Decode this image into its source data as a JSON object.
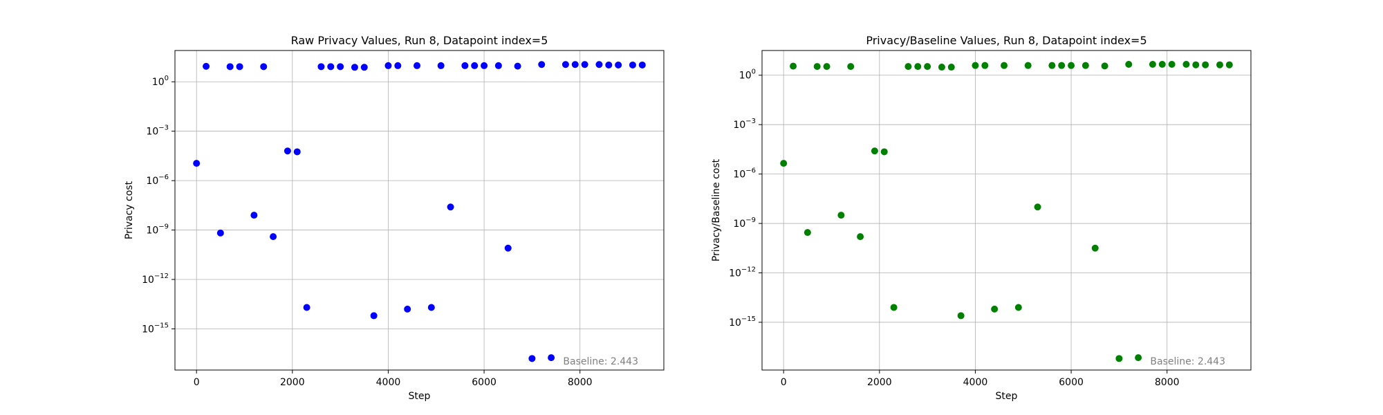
{
  "chart_data": [
    {
      "type": "scatter",
      "title": "Raw Privacy Values, Run 8, Datapoint index=5",
      "xlabel": "Step",
      "ylabel": "Privacy cost",
      "annotation": "Baseline: 2.443",
      "marker_color": "#0000ff",
      "y_scale": "log",
      "grid": true,
      "xlim": [
        -450,
        9750
      ],
      "ylim_log10": [
        -17.5,
        1.9
      ],
      "x_ticks": [
        0,
        2000,
        4000,
        6000,
        8000
      ],
      "x_tick_labels": [
        "0",
        "2000",
        "4000",
        "6000",
        "8000"
      ],
      "y_ticks_log10": [
        0,
        -3,
        -6,
        -9,
        -12,
        -15
      ],
      "y_tick_labels": [
        "10^0",
        "10^-3",
        "10^-6",
        "10^-9",
        "10^-12",
        "10^-15"
      ],
      "points": [
        {
          "x": 0,
          "y_log10": -4.95
        },
        {
          "x": 200,
          "y_log10": 0.94
        },
        {
          "x": 500,
          "y_log10": -9.18
        },
        {
          "x": 700,
          "y_log10": 0.92
        },
        {
          "x": 900,
          "y_log10": 0.92
        },
        {
          "x": 1200,
          "y_log10": -8.1
        },
        {
          "x": 1400,
          "y_log10": 0.92
        },
        {
          "x": 1600,
          "y_log10": -9.4
        },
        {
          "x": 1900,
          "y_log10": -4.2
        },
        {
          "x": 2100,
          "y_log10": -4.25
        },
        {
          "x": 2300,
          "y_log10": -13.7
        },
        {
          "x": 2600,
          "y_log10": 0.92
        },
        {
          "x": 2800,
          "y_log10": 0.92
        },
        {
          "x": 3000,
          "y_log10": 0.92
        },
        {
          "x": 3300,
          "y_log10": 0.88
        },
        {
          "x": 3500,
          "y_log10": 0.88
        },
        {
          "x": 3700,
          "y_log10": -14.2
        },
        {
          "x": 4000,
          "y_log10": 0.98
        },
        {
          "x": 4200,
          "y_log10": 0.98
        },
        {
          "x": 4400,
          "y_log10": -13.8
        },
        {
          "x": 4600,
          "y_log10": 0.98
        },
        {
          "x": 4900,
          "y_log10": -13.7
        },
        {
          "x": 5100,
          "y_log10": 0.98
        },
        {
          "x": 5300,
          "y_log10": -7.6
        },
        {
          "x": 5600,
          "y_log10": 0.98
        },
        {
          "x": 5800,
          "y_log10": 0.98
        },
        {
          "x": 6000,
          "y_log10": 0.98
        },
        {
          "x": 6300,
          "y_log10": 0.98
        },
        {
          "x": 6500,
          "y_log10": -10.1
        },
        {
          "x": 6700,
          "y_log10": 0.95
        },
        {
          "x": 7000,
          "y_log10": -16.8
        },
        {
          "x": 7200,
          "y_log10": 1.05
        },
        {
          "x": 7400,
          "y_log10": -16.75
        },
        {
          "x": 7700,
          "y_log10": 1.05
        },
        {
          "x": 7900,
          "y_log10": 1.05
        },
        {
          "x": 8100,
          "y_log10": 1.05
        },
        {
          "x": 8400,
          "y_log10": 1.05
        },
        {
          "x": 8600,
          "y_log10": 1.02
        },
        {
          "x": 8800,
          "y_log10": 1.02
        },
        {
          "x": 9100,
          "y_log10": 1.02
        },
        {
          "x": 9300,
          "y_log10": 1.02
        }
      ]
    },
    {
      "type": "scatter",
      "title": "Privacy/Baseline Values, Run 8, Datapoint index=5",
      "xlabel": "Step",
      "ylabel": "Privacy/Baseline cost",
      "annotation": "Baseline: 2.443",
      "marker_color": "#008000",
      "y_scale": "log",
      "grid": true,
      "xlim": [
        -450,
        9750
      ],
      "ylim_log10": [
        -17.9,
        1.5
      ],
      "x_ticks": [
        0,
        2000,
        4000,
        6000,
        8000
      ],
      "x_tick_labels": [
        "0",
        "2000",
        "4000",
        "6000",
        "8000"
      ],
      "y_ticks_log10": [
        0,
        -3,
        -6,
        -9,
        -12,
        -15
      ],
      "y_tick_labels": [
        "10^0",
        "10^-3",
        "10^-6",
        "10^-9",
        "10^-12",
        "10^-15"
      ],
      "points": [
        {
          "x": 0,
          "y_log10": -5.35
        },
        {
          "x": 200,
          "y_log10": 0.55
        },
        {
          "x": 500,
          "y_log10": -9.55
        },
        {
          "x": 700,
          "y_log10": 0.53
        },
        {
          "x": 900,
          "y_log10": 0.53
        },
        {
          "x": 1200,
          "y_log10": -8.5
        },
        {
          "x": 1400,
          "y_log10": 0.53
        },
        {
          "x": 1600,
          "y_log10": -9.8
        },
        {
          "x": 1900,
          "y_log10": -4.6
        },
        {
          "x": 2100,
          "y_log10": -4.65
        },
        {
          "x": 2300,
          "y_log10": -14.1
        },
        {
          "x": 2600,
          "y_log10": 0.53
        },
        {
          "x": 2800,
          "y_log10": 0.53
        },
        {
          "x": 3000,
          "y_log10": 0.53
        },
        {
          "x": 3300,
          "y_log10": 0.49
        },
        {
          "x": 3500,
          "y_log10": 0.49
        },
        {
          "x": 3700,
          "y_log10": -14.6
        },
        {
          "x": 4000,
          "y_log10": 0.59
        },
        {
          "x": 4200,
          "y_log10": 0.59
        },
        {
          "x": 4400,
          "y_log10": -14.2
        },
        {
          "x": 4600,
          "y_log10": 0.59
        },
        {
          "x": 4900,
          "y_log10": -14.1
        },
        {
          "x": 5100,
          "y_log10": 0.59
        },
        {
          "x": 5300,
          "y_log10": -8.0
        },
        {
          "x": 5600,
          "y_log10": 0.59
        },
        {
          "x": 5800,
          "y_log10": 0.59
        },
        {
          "x": 6000,
          "y_log10": 0.59
        },
        {
          "x": 6300,
          "y_log10": 0.59
        },
        {
          "x": 6500,
          "y_log10": -10.5
        },
        {
          "x": 6700,
          "y_log10": 0.56
        },
        {
          "x": 7000,
          "y_log10": -17.2
        },
        {
          "x": 7200,
          "y_log10": 0.66
        },
        {
          "x": 7400,
          "y_log10": -17.15
        },
        {
          "x": 7700,
          "y_log10": 0.66
        },
        {
          "x": 7900,
          "y_log10": 0.66
        },
        {
          "x": 8100,
          "y_log10": 0.66
        },
        {
          "x": 8400,
          "y_log10": 0.66
        },
        {
          "x": 8600,
          "y_log10": 0.63
        },
        {
          "x": 8800,
          "y_log10": 0.63
        },
        {
          "x": 9100,
          "y_log10": 0.63
        },
        {
          "x": 9300,
          "y_log10": 0.63
        }
      ]
    }
  ]
}
